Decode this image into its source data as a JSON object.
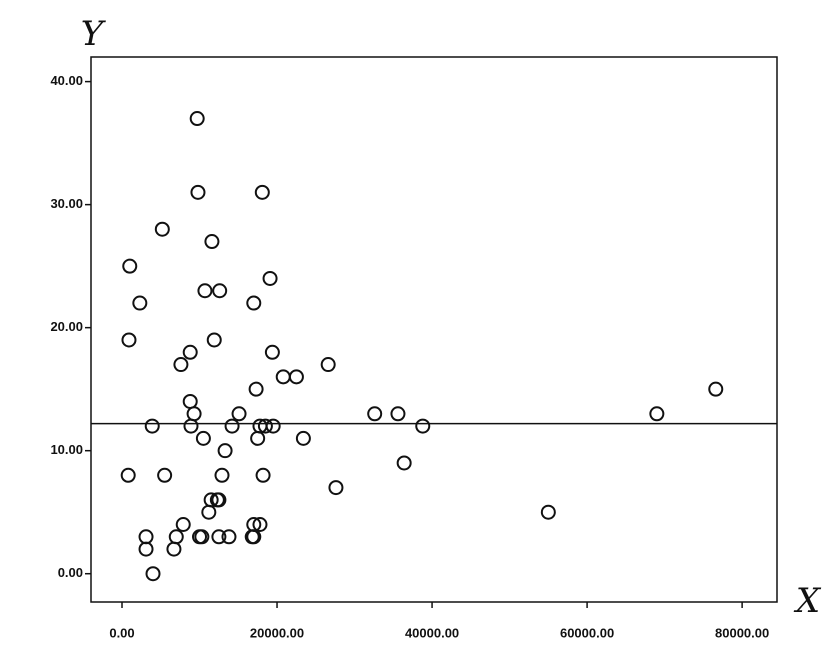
{
  "chart_data": {
    "type": "scatter",
    "x_label": "X",
    "y_label": "Y",
    "xlim": [
      -4000,
      84500
    ],
    "ylim": [
      -2.3,
      42
    ],
    "xticks": [
      {
        "value": 0,
        "label": "0.00"
      },
      {
        "value": 20000,
        "label": "20000.00"
      },
      {
        "value": 40000,
        "label": "40000.00"
      },
      {
        "value": 60000,
        "label": "60000.00"
      },
      {
        "value": 80000,
        "label": "80000.00"
      }
    ],
    "yticks": [
      {
        "value": 0,
        "label": "0.00"
      },
      {
        "value": 10,
        "label": "10.00"
      },
      {
        "value": 20,
        "label": "20.00"
      },
      {
        "value": 30,
        "label": "30.00"
      },
      {
        "value": 40,
        "label": "40.00"
      }
    ],
    "reference_line": 12.2,
    "color": "#111111",
    "x": [
      4000,
      3100,
      3100,
      6700,
      7000,
      7900,
      10000,
      10300,
      11200,
      11500,
      12300,
      12500,
      12500,
      13800,
      16800,
      17000,
      17800,
      17000,
      12900,
      18200,
      800,
      5500,
      13300,
      10500,
      3900,
      8900,
      9300,
      8800,
      14200,
      15100,
      17500,
      17800,
      18500,
      19500,
      23400,
      27600,
      32600,
      35600,
      36400,
      38800,
      55000,
      69000,
      76600,
      17300,
      20800,
      22500,
      26600,
      7600,
      8800,
      19400,
      900,
      11900,
      2300,
      17000,
      10700,
      12600,
      1000,
      19100,
      11600,
      5200,
      9800,
      18100,
      9700
    ],
    "y": [
      0,
      3,
      2,
      2,
      3,
      4,
      3,
      3,
      5,
      6,
      6,
      6,
      3,
      3,
      3,
      4,
      4,
      3,
      8,
      8,
      8,
      8,
      10,
      11,
      12,
      12,
      13,
      14,
      12,
      13,
      11,
      12,
      12,
      12,
      11,
      7,
      13,
      13,
      9,
      12,
      5,
      13,
      15,
      15,
      16,
      16,
      17,
      17,
      18,
      18,
      19,
      19,
      22,
      22,
      23,
      23,
      25,
      24,
      27,
      28,
      31,
      31,
      37
    ]
  }
}
